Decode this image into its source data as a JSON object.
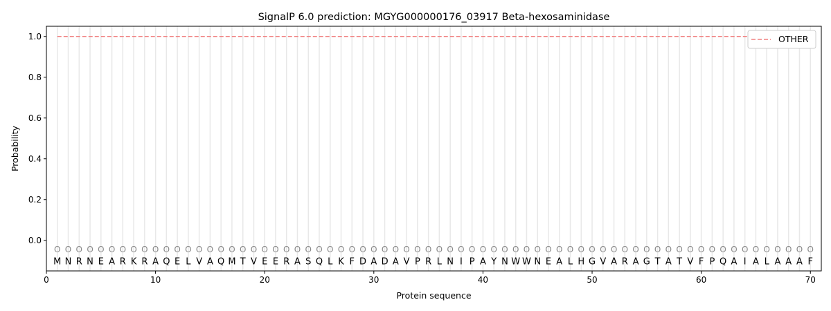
{
  "chart_data": {
    "type": "line",
    "title": "SignalP 6.0 prediction: MGYG000000176_03917 Beta-hexosaminidase",
    "xlabel": "Protein sequence",
    "ylabel": "Probability",
    "xlim": [
      0,
      71
    ],
    "ylim": [
      -0.15,
      1.05
    ],
    "xticks": [
      0,
      10,
      20,
      30,
      40,
      50,
      60,
      70
    ],
    "yticks": [
      "0.0",
      "0.2",
      "0.4",
      "0.6",
      "0.8",
      "1.0"
    ],
    "sequence": "MNRNEARKRAQELVAQMTVEERASQLKFDADAVPRLNIPAYNWWNEALHGVARAGTATVFPQAIALAAAF",
    "predicted_labels": "OOOOOOOOOOOOOOOOOOOOOOOOOOOOOOOOOOOOOOOOOOOOOOOOOOOOOOOOOOOOOOOOOOOOOO",
    "series": [
      {
        "name": "OTHER",
        "color": "#f08080",
        "style": "dashed",
        "x_range": [
          1,
          70
        ],
        "value": 1.0
      }
    ],
    "legend": "top-right",
    "grid": "vertical lines at each residue"
  }
}
